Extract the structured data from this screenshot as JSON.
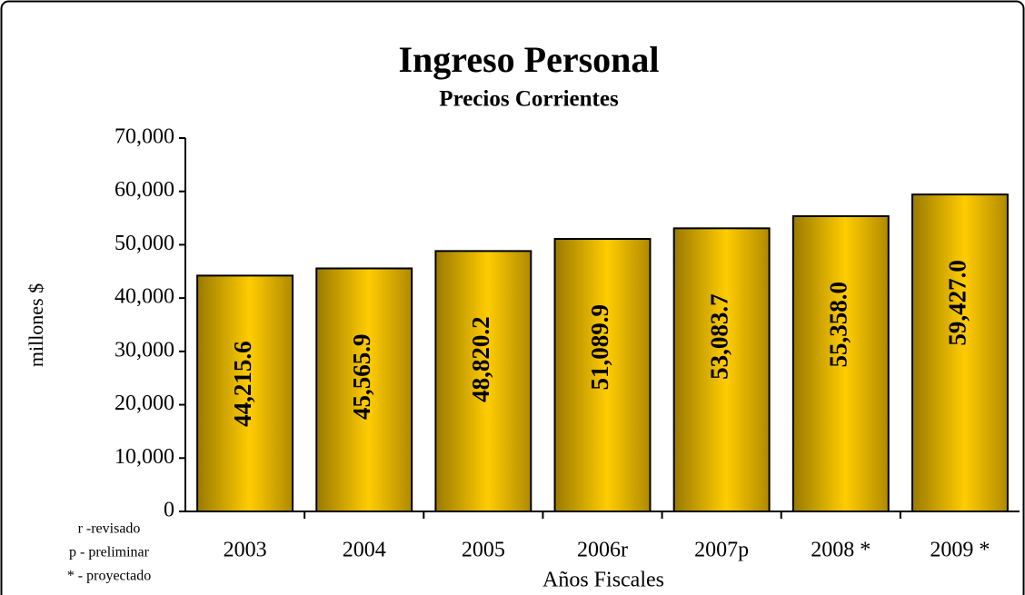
{
  "chart_data": {
    "type": "bar",
    "title": "Ingreso Personal",
    "subtitle": "Precios Corrientes",
    "y_axis_label": "millones $",
    "x_axis_label": "Años Fiscales",
    "categories": [
      "2003",
      "2004",
      "2005",
      "2006r",
      "2007p",
      "2008 *",
      "2009 *"
    ],
    "values": [
      44215.6,
      45565.9,
      48820.2,
      51089.9,
      53083.7,
      55358.0,
      59427.0
    ],
    "value_labels": [
      "44,215.6",
      "45,565.9",
      "48,820.2",
      "51,089.9",
      "53,083.7",
      "55,358.0",
      "59,427.0"
    ],
    "color": "#ffcc00",
    "ylim": [
      0,
      70000
    ],
    "yticks": [
      0,
      {
        "value": 10000,
        "label": "10,000"
      },
      {
        "value": 20000,
        "label": "20,000"
      },
      {
        "value": 30000,
        "label": "30,000"
      },
      {
        "value": 40000,
        "label": "40,000"
      },
      {
        "value": 50000,
        "label": "50,000"
      },
      {
        "value": 60000,
        "label": "60,000"
      },
      {
        "value": 70000,
        "label": "70,000"
      }
    ],
    "notes": [
      "r -revisado",
      "p - preliminar",
      "* - proyectado"
    ]
  }
}
